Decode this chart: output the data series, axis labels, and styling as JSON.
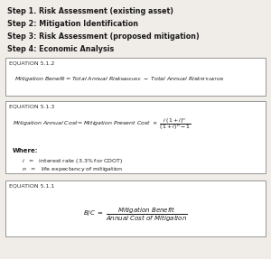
{
  "bg_color": "#f0ece8",
  "box_bg": "#ffffff",
  "border_color": "#888888",
  "text_color": "#1a1a1a",
  "label_color": "#333333",
  "steps": [
    "Step 1. Risk Assessment (existing asset)",
    "Step 2: Mitigation Identification",
    "Step 3: Risk Assessment (proposed mitigation)",
    "Step 4: Economic Analysis"
  ],
  "eq1_label": "EQUATION 5.1.2",
  "eq2_label": "EQUATION 5.1.3",
  "eq2_where": "Where:",
  "eq2_i": "i   =   interest rate (3.3% for CDOT)",
  "eq2_n": "n   =   life expectancy of mitigation",
  "eq3_label": "EQUATION 5.1.1"
}
